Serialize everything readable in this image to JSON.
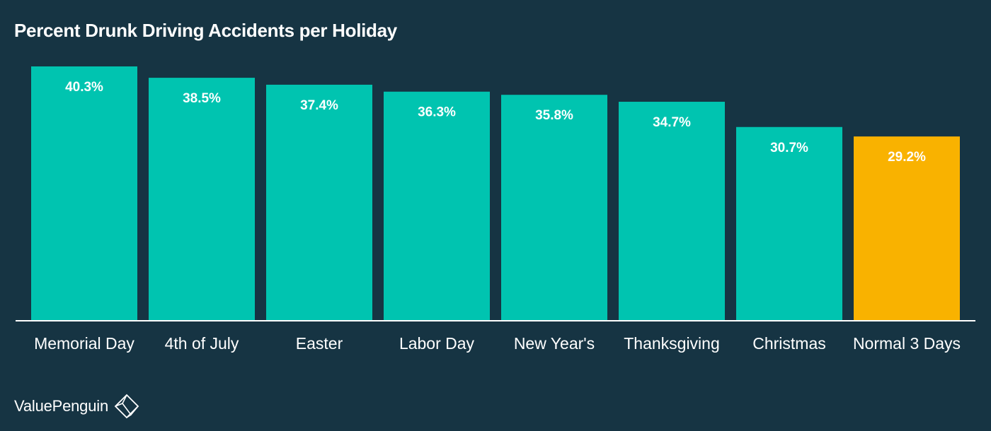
{
  "chart_data": {
    "type": "bar",
    "title": "Percent Drunk Driving Accidents per Holiday",
    "categories": [
      "Memorial Day",
      "4th of July",
      "Easter",
      "Labor Day",
      "New Year's",
      "Thanksgiving",
      "Christmas",
      "Normal 3 Days"
    ],
    "values": [
      40.3,
      38.5,
      37.4,
      36.3,
      35.8,
      34.7,
      30.7,
      29.2
    ],
    "data_labels": [
      "40.3%",
      "38.5%",
      "37.4%",
      "36.3%",
      "35.8%",
      "34.7%",
      "30.7%",
      "29.2%"
    ],
    "ylim": [
      0,
      40.3
    ],
    "xlabel": "",
    "ylabel": "",
    "grid": false,
    "legend": "none",
    "colors": {
      "bar": "#00C4B0",
      "highlight_bar": "#F9B200",
      "highlight_category": "Normal 3 Days",
      "background": "#163443",
      "axis": "#FFFFFF",
      "text": "#FFFFFF"
    }
  },
  "brand": {
    "name": "ValuePenguin",
    "logo_icon": "penguin-diamond-logo-icon"
  }
}
